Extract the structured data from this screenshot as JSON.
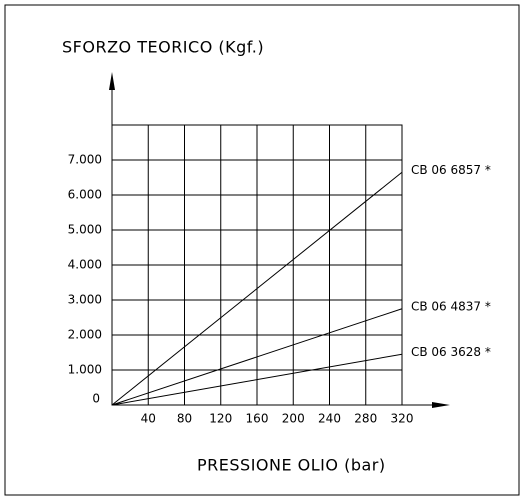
{
  "chart_data": {
    "type": "line",
    "title": "SFORZO TEORICO  (Kgf.)",
    "x_label": "PRESSIONE OLIO  (bar)",
    "x": [
      0,
      320
    ],
    "series": [
      {
        "name": "CB 06 6857 *",
        "color": "#000000",
        "values": [
          0,
          6650
        ]
      },
      {
        "name": "CB 06 4837 *",
        "color": "#000000",
        "values": [
          0,
          2750
        ]
      },
      {
        "name": "CB 06 3628 *",
        "color": "#000000",
        "values": [
          0,
          1450
        ]
      }
    ],
    "xlim": [
      0,
      320
    ],
    "xticks": [
      40,
      80,
      120,
      160,
      200,
      240,
      280,
      320
    ],
    "ylim": [
      0,
      8000
    ],
    "yticks": [
      0,
      {
        "value": 1000,
        "label": "1.000"
      },
      {
        "value": 2000,
        "label": "2.000"
      },
      {
        "value": 3000,
        "label": "3.000"
      },
      {
        "value": 4000,
        "label": "4.000"
      },
      {
        "value": 5000,
        "label": "5.000"
      },
      {
        "value": 6000,
        "label": "6.000"
      },
      {
        "value": 7000,
        "label": "7.000"
      }
    ],
    "grid": true
  }
}
